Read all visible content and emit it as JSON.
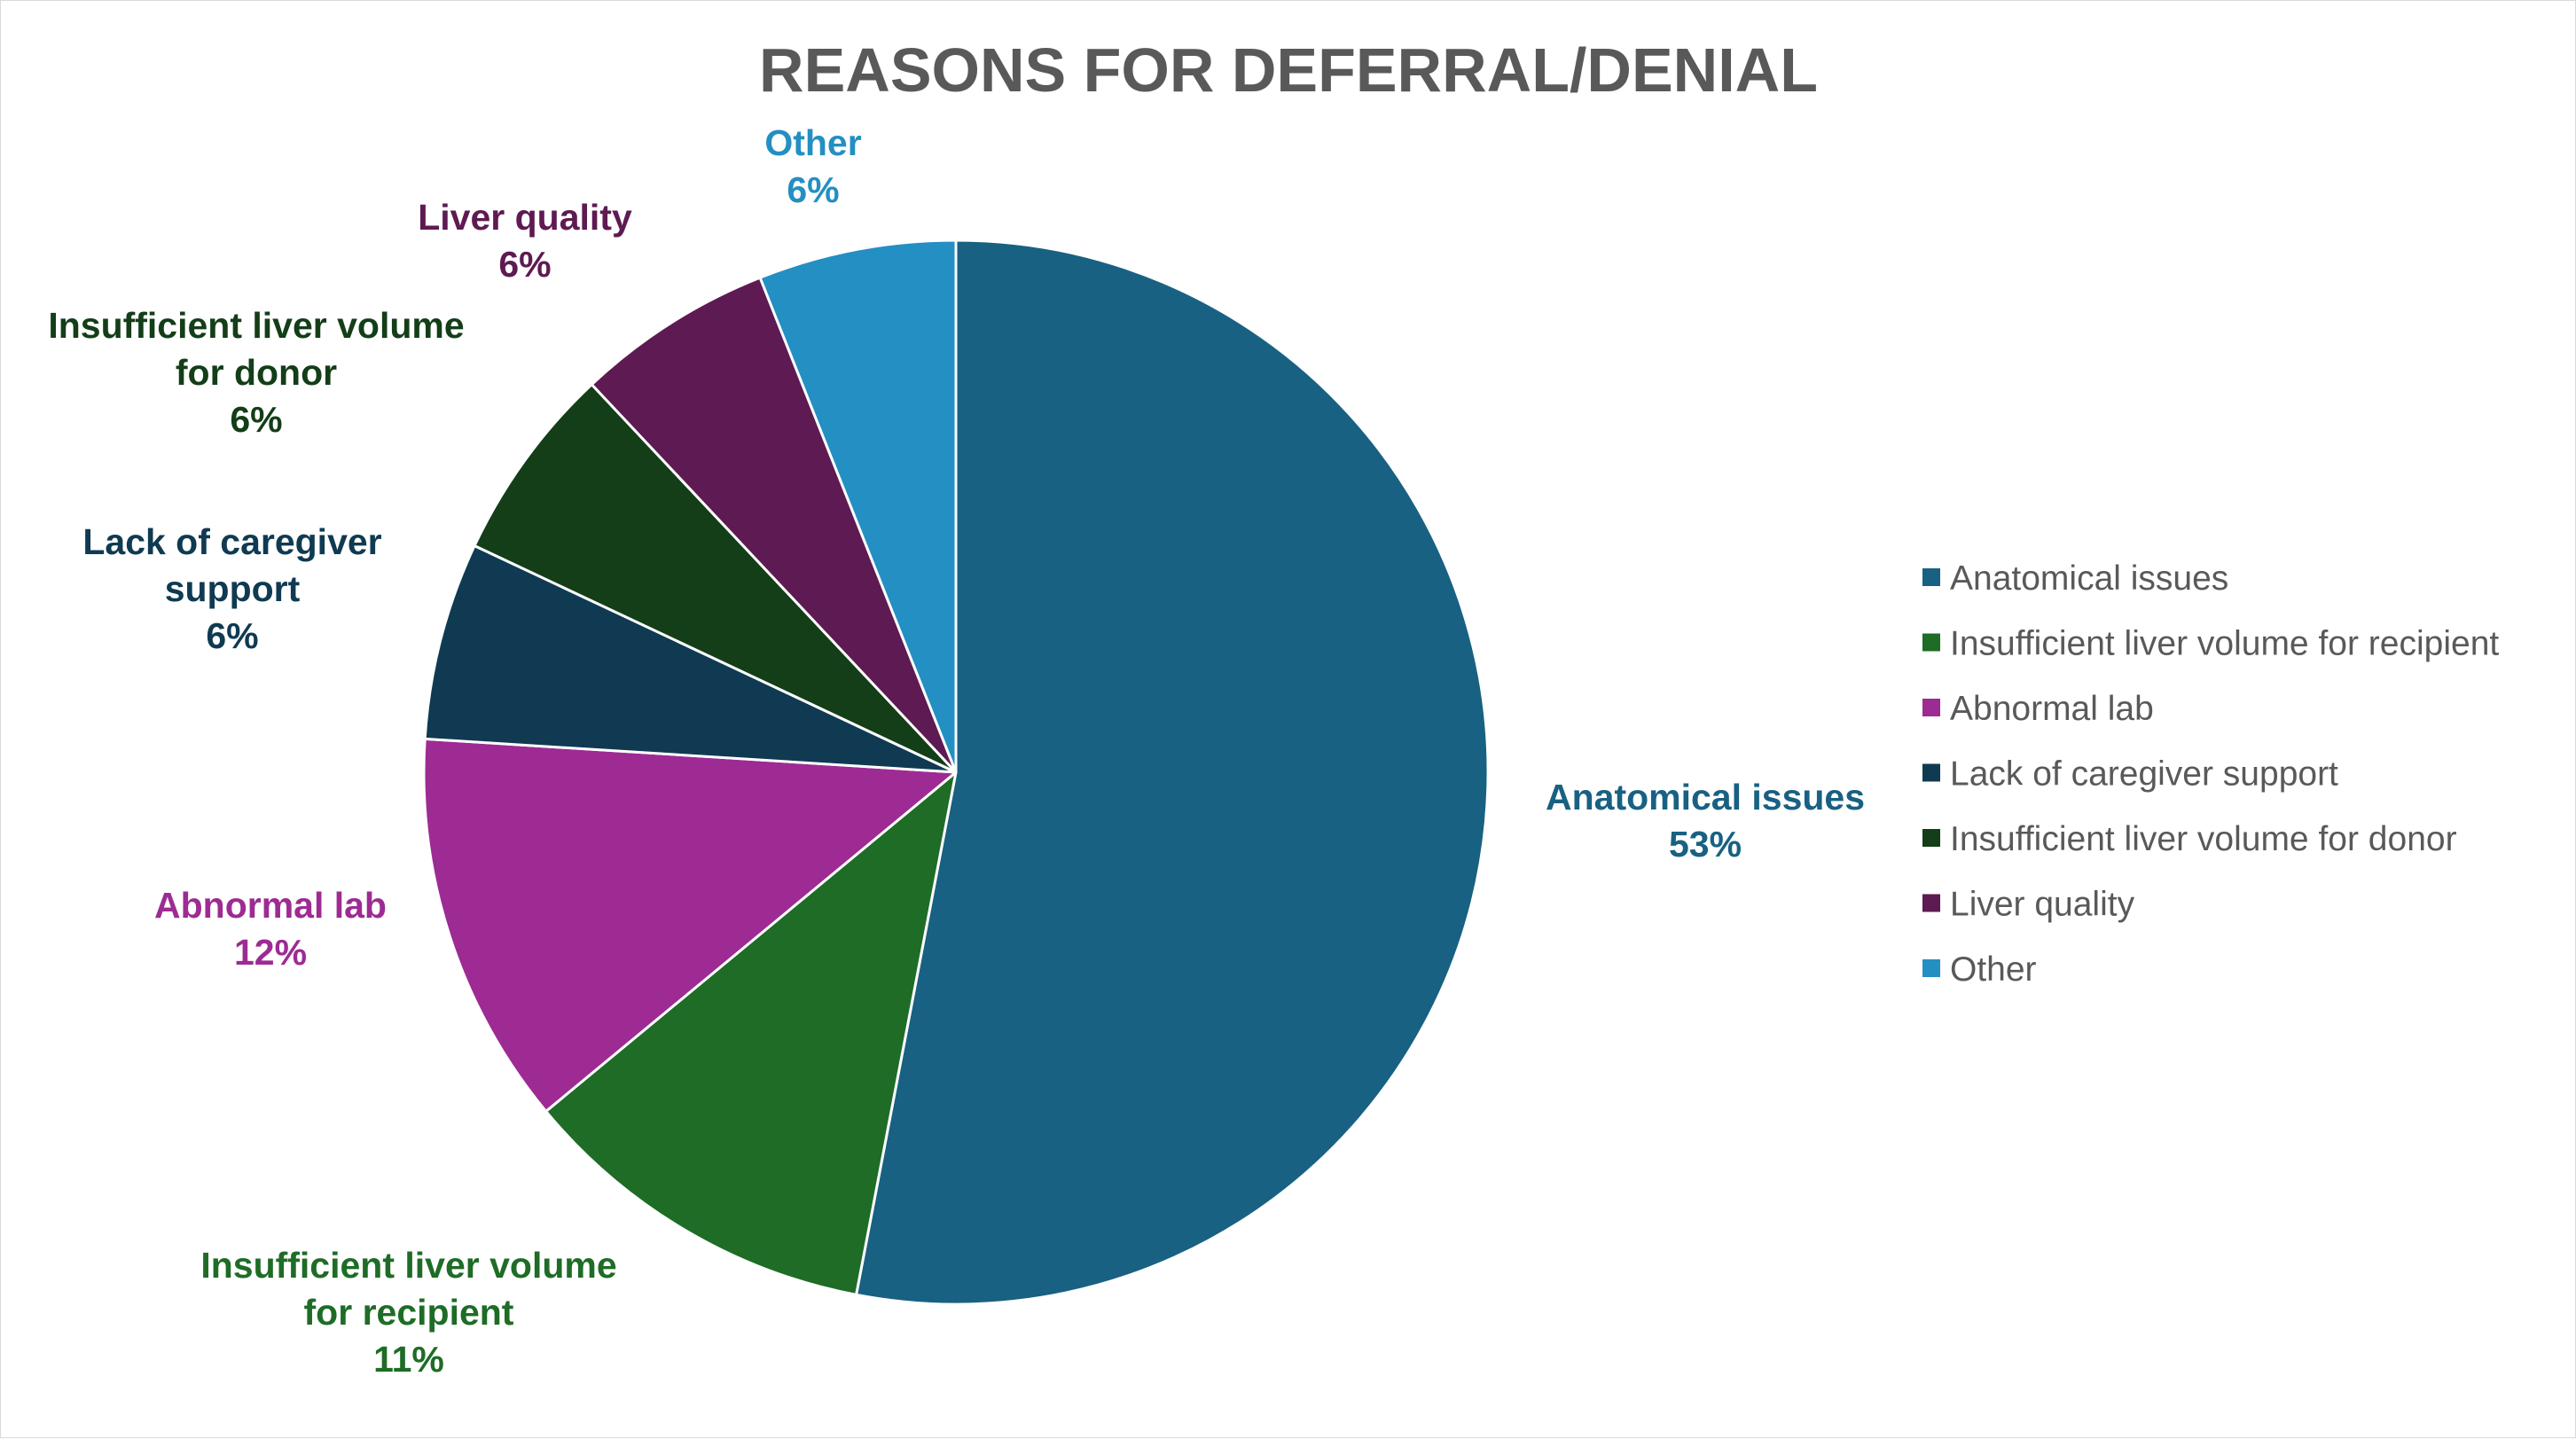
{
  "chart_data": {
    "type": "pie",
    "title": "REASONS FOR DEFERRAL/DENIAL",
    "start_angle_deg": 0,
    "direction": "clockwise",
    "legend_position": "right",
    "slices": [
      {
        "key": "anatomical",
        "name": "Anatomical issues",
        "label_lines": [
          "Anatomical issues"
        ],
        "value": 53,
        "value_label": "53%",
        "color": "#186182"
      },
      {
        "key": "volume-recipient",
        "name": "Insufficient liver volume for recipient",
        "label_lines": [
          "Insufficient liver volume",
          "for recipient"
        ],
        "value": 11,
        "value_label": "11%",
        "color": "#1e6c26"
      },
      {
        "key": "abnormal-lab",
        "name": "Abnormal lab",
        "label_lines": [
          "Abnormal lab"
        ],
        "value": 12,
        "value_label": "12%",
        "color": "#9d2b93"
      },
      {
        "key": "caregiver",
        "name": "Lack of caregiver support",
        "label_lines": [
          "Lack of caregiver",
          "support"
        ],
        "value": 6,
        "value_label": "6%",
        "color": "#0f3a52"
      },
      {
        "key": "volume-donor",
        "name": "Insufficient liver volume for donor",
        "label_lines": [
          "Insufficient liver volume",
          "for donor"
        ],
        "value": 6,
        "value_label": "6%",
        "color": "#133e18"
      },
      {
        "key": "liver-quality",
        "name": "Liver quality",
        "label_lines": [
          "Liver quality"
        ],
        "value": 6,
        "value_label": "6%",
        "color": "#5e1a52"
      },
      {
        "key": "other",
        "name": "Other",
        "label_lines": [
          "Other"
        ],
        "value": 6,
        "value_label": "6%",
        "color": "#238fc3"
      }
    ]
  }
}
